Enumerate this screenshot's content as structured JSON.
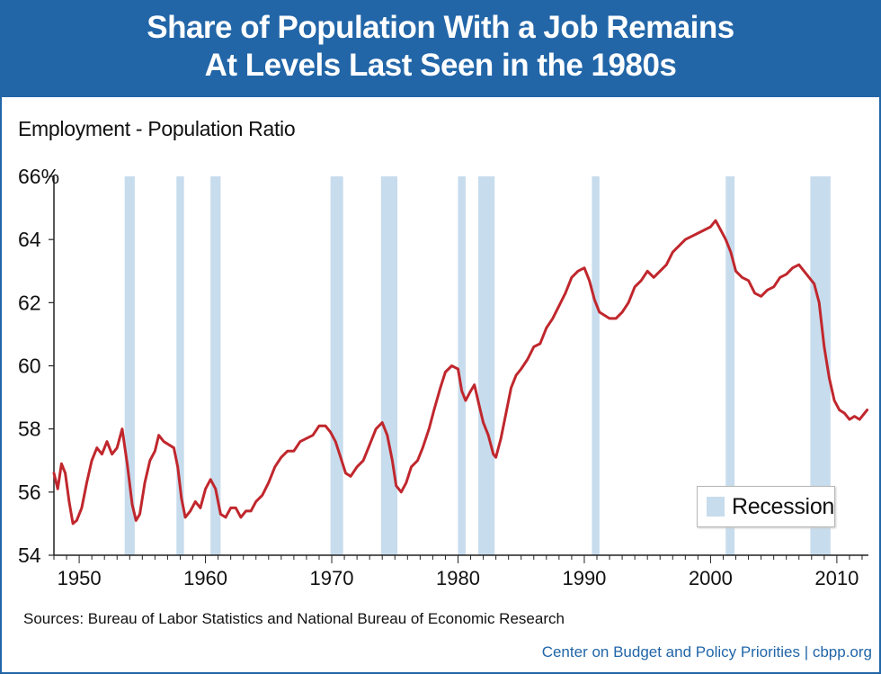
{
  "header": {
    "title_line1": "Share of Population With a Job Remains",
    "title_line2": "At Levels Last Seen in the 1980s"
  },
  "footer": {
    "sources": "Sources: Bureau of Labor Statistics and National Bureau of Economic Research",
    "credit": "Center on Budget and Policy Priorities | cbpp.org"
  },
  "colors": {
    "header_bg": "#2266a8",
    "line": "#c0272d",
    "recession": "#c7dced",
    "credit_text": "#2266a8"
  },
  "chart_data": {
    "type": "line",
    "title": "Share of Population With a Job Remains At Levels Last Seen in the 1980s",
    "ylabel": "Employment - Population Ratio",
    "xlabel": "",
    "xlim": [
      1948,
      2012.5
    ],
    "ylim": [
      54,
      66
    ],
    "x_ticks": [
      "1950",
      "1960",
      "1970",
      "1980",
      "1990",
      "2000",
      "2010"
    ],
    "y_ticks": [
      "66%",
      "64",
      "62",
      "60",
      "58",
      "56",
      "54"
    ],
    "grid": false,
    "legend": {
      "position": "bottom-right",
      "entries": [
        "Recession"
      ]
    },
    "recessions": [
      [
        1953.6,
        1954.4
      ],
      [
        1957.7,
        1958.3
      ],
      [
        1960.4,
        1961.2
      ],
      [
        1969.9,
        1970.9
      ],
      [
        1973.9,
        1975.2
      ],
      [
        1980.0,
        1980.6
      ],
      [
        1981.6,
        1982.9
      ],
      [
        1990.6,
        1991.2
      ],
      [
        2001.2,
        2001.9
      ],
      [
        2007.9,
        2009.5
      ]
    ],
    "series": [
      {
        "name": "",
        "points": [
          [
            1948.0,
            56.6
          ],
          [
            1948.3,
            56.1
          ],
          [
            1948.6,
            56.9
          ],
          [
            1948.9,
            56.6
          ],
          [
            1949.2,
            55.7
          ],
          [
            1949.5,
            55.0
          ],
          [
            1949.8,
            55.1
          ],
          [
            1950.2,
            55.5
          ],
          [
            1950.6,
            56.3
          ],
          [
            1951.0,
            57.0
          ],
          [
            1951.4,
            57.4
          ],
          [
            1951.8,
            57.2
          ],
          [
            1952.2,
            57.6
          ],
          [
            1952.6,
            57.2
          ],
          [
            1953.0,
            57.4
          ],
          [
            1953.4,
            58.0
          ],
          [
            1953.8,
            56.9
          ],
          [
            1954.2,
            55.6
          ],
          [
            1954.5,
            55.1
          ],
          [
            1954.8,
            55.3
          ],
          [
            1955.2,
            56.3
          ],
          [
            1955.6,
            57.0
          ],
          [
            1956.0,
            57.3
          ],
          [
            1956.3,
            57.8
          ],
          [
            1956.7,
            57.6
          ],
          [
            1957.1,
            57.5
          ],
          [
            1957.5,
            57.4
          ],
          [
            1957.8,
            56.8
          ],
          [
            1958.1,
            55.8
          ],
          [
            1958.4,
            55.2
          ],
          [
            1958.8,
            55.4
          ],
          [
            1959.2,
            55.7
          ],
          [
            1959.6,
            55.5
          ],
          [
            1960.0,
            56.1
          ],
          [
            1960.4,
            56.4
          ],
          [
            1960.8,
            56.1
          ],
          [
            1961.2,
            55.3
          ],
          [
            1961.6,
            55.2
          ],
          [
            1962.0,
            55.5
          ],
          [
            1962.4,
            55.5
          ],
          [
            1962.8,
            55.2
          ],
          [
            1963.2,
            55.4
          ],
          [
            1963.6,
            55.4
          ],
          [
            1964.0,
            55.7
          ],
          [
            1964.5,
            55.9
          ],
          [
            1965.0,
            56.3
          ],
          [
            1965.5,
            56.8
          ],
          [
            1966.0,
            57.1
          ],
          [
            1966.5,
            57.3
          ],
          [
            1967.0,
            57.3
          ],
          [
            1967.5,
            57.6
          ],
          [
            1968.0,
            57.7
          ],
          [
            1968.5,
            57.8
          ],
          [
            1969.0,
            58.1
          ],
          [
            1969.5,
            58.1
          ],
          [
            1969.9,
            57.9
          ],
          [
            1970.3,
            57.6
          ],
          [
            1970.7,
            57.1
          ],
          [
            1971.1,
            56.6
          ],
          [
            1971.5,
            56.5
          ],
          [
            1972.0,
            56.8
          ],
          [
            1972.5,
            57.0
          ],
          [
            1973.0,
            57.5
          ],
          [
            1973.5,
            58.0
          ],
          [
            1974.0,
            58.2
          ],
          [
            1974.4,
            57.8
          ],
          [
            1974.8,
            57.0
          ],
          [
            1975.1,
            56.2
          ],
          [
            1975.5,
            56.0
          ],
          [
            1975.9,
            56.3
          ],
          [
            1976.3,
            56.8
          ],
          [
            1976.8,
            57.0
          ],
          [
            1977.2,
            57.4
          ],
          [
            1977.7,
            58.0
          ],
          [
            1978.1,
            58.6
          ],
          [
            1978.6,
            59.3
          ],
          [
            1979.0,
            59.8
          ],
          [
            1979.5,
            60.0
          ],
          [
            1980.0,
            59.9
          ],
          [
            1980.3,
            59.2
          ],
          [
            1980.6,
            58.9
          ],
          [
            1981.0,
            59.2
          ],
          [
            1981.3,
            59.4
          ],
          [
            1981.7,
            58.7
          ],
          [
            1982.0,
            58.2
          ],
          [
            1982.4,
            57.8
          ],
          [
            1982.8,
            57.2
          ],
          [
            1983.0,
            57.1
          ],
          [
            1983.4,
            57.7
          ],
          [
            1983.8,
            58.5
          ],
          [
            1984.2,
            59.3
          ],
          [
            1984.6,
            59.7
          ],
          [
            1985.0,
            59.9
          ],
          [
            1985.5,
            60.2
          ],
          [
            1986.0,
            60.6
          ],
          [
            1986.5,
            60.7
          ],
          [
            1987.0,
            61.2
          ],
          [
            1987.5,
            61.5
          ],
          [
            1988.0,
            61.9
          ],
          [
            1988.5,
            62.3
          ],
          [
            1989.0,
            62.8
          ],
          [
            1989.5,
            63.0
          ],
          [
            1990.0,
            63.1
          ],
          [
            1990.4,
            62.7
          ],
          [
            1990.8,
            62.1
          ],
          [
            1991.2,
            61.7
          ],
          [
            1991.6,
            61.6
          ],
          [
            1992.0,
            61.5
          ],
          [
            1992.5,
            61.5
          ],
          [
            1993.0,
            61.7
          ],
          [
            1993.5,
            62.0
          ],
          [
            1994.0,
            62.5
          ],
          [
            1994.5,
            62.7
          ],
          [
            1995.0,
            63.0
          ],
          [
            1995.5,
            62.8
          ],
          [
            1996.0,
            63.0
          ],
          [
            1996.5,
            63.2
          ],
          [
            1997.0,
            63.6
          ],
          [
            1997.5,
            63.8
          ],
          [
            1998.0,
            64.0
          ],
          [
            1998.5,
            64.1
          ],
          [
            1999.0,
            64.2
          ],
          [
            1999.5,
            64.3
          ],
          [
            2000.0,
            64.4
          ],
          [
            2000.4,
            64.6
          ],
          [
            2000.8,
            64.3
          ],
          [
            2001.2,
            64.0
          ],
          [
            2001.6,
            63.6
          ],
          [
            2002.0,
            63.0
          ],
          [
            2002.5,
            62.8
          ],
          [
            2003.0,
            62.7
          ],
          [
            2003.5,
            62.3
          ],
          [
            2004.0,
            62.2
          ],
          [
            2004.5,
            62.4
          ],
          [
            2005.0,
            62.5
          ],
          [
            2005.5,
            62.8
          ],
          [
            2006.0,
            62.9
          ],
          [
            2006.5,
            63.1
          ],
          [
            2007.0,
            63.2
          ],
          [
            2007.4,
            63.0
          ],
          [
            2007.8,
            62.8
          ],
          [
            2008.2,
            62.6
          ],
          [
            2008.6,
            62.0
          ],
          [
            2009.0,
            60.6
          ],
          [
            2009.4,
            59.6
          ],
          [
            2009.8,
            58.9
          ],
          [
            2010.2,
            58.6
          ],
          [
            2010.6,
            58.5
          ],
          [
            2011.0,
            58.3
          ],
          [
            2011.4,
            58.4
          ],
          [
            2011.8,
            58.3
          ],
          [
            2012.2,
            58.5
          ],
          [
            2012.4,
            58.6
          ]
        ]
      }
    ]
  }
}
